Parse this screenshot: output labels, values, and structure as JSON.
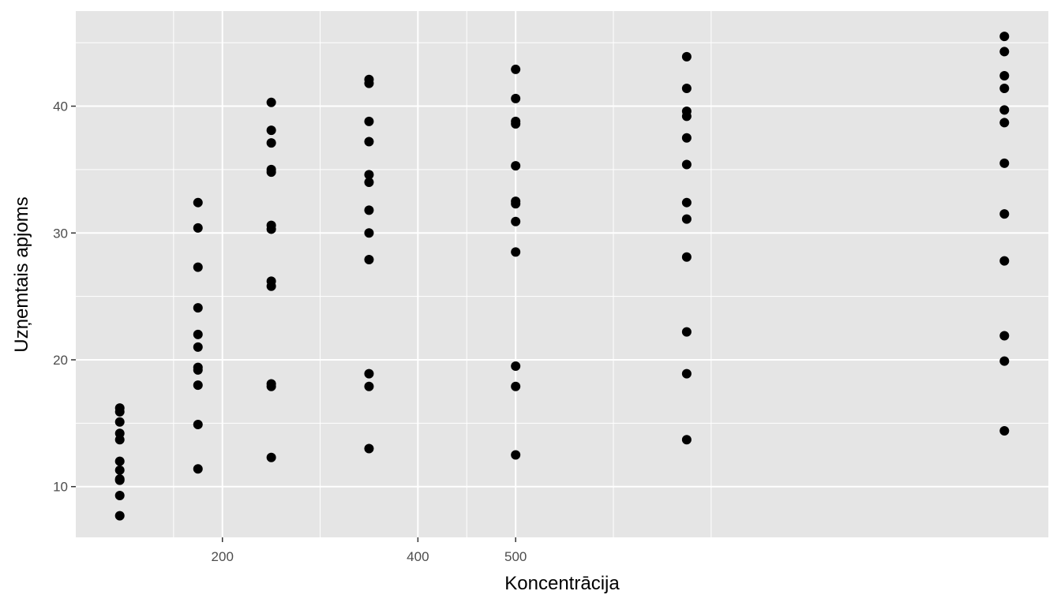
{
  "chart_data": {
    "type": "scatter",
    "title": "",
    "xlabel": "Koncentrācija",
    "ylabel": "Uzņemtais apjoms",
    "x_ticks": [
      200,
      400,
      500
    ],
    "x_tick_labels": [
      "200",
      "400",
      "500"
    ],
    "x_minor_ticks": [
      150,
      300,
      450,
      600,
      700
    ],
    "y_ticks": [
      10,
      20,
      30,
      40
    ],
    "y_tick_labels": [
      "10",
      "20",
      "30",
      "40"
    ],
    "xlim": [
      50,
      1045
    ],
    "ylim": [
      6,
      47.5
    ],
    "grid": true,
    "colors": {
      "panel": "#e5e5e5",
      "grid": "#ffffff",
      "point": "#000000"
    },
    "points": [
      {
        "x": 95,
        "y": 16.2
      },
      {
        "x": 95,
        "y": 15.9
      },
      {
        "x": 95,
        "y": 15.1
      },
      {
        "x": 95,
        "y": 14.2
      },
      {
        "x": 95,
        "y": 13.7
      },
      {
        "x": 95,
        "y": 12.0
      },
      {
        "x": 95,
        "y": 11.3
      },
      {
        "x": 95,
        "y": 10.6
      },
      {
        "x": 95,
        "y": 10.5
      },
      {
        "x": 95,
        "y": 9.3
      },
      {
        "x": 95,
        "y": 7.7
      },
      {
        "x": 175,
        "y": 32.4
      },
      {
        "x": 175,
        "y": 30.4
      },
      {
        "x": 175,
        "y": 27.3
      },
      {
        "x": 175,
        "y": 24.1
      },
      {
        "x": 175,
        "y": 22.0
      },
      {
        "x": 175,
        "y": 21.0
      },
      {
        "x": 175,
        "y": 19.4
      },
      {
        "x": 175,
        "y": 19.2
      },
      {
        "x": 175,
        "y": 18.0
      },
      {
        "x": 175,
        "y": 14.9
      },
      {
        "x": 175,
        "y": 11.4
      },
      {
        "x": 250,
        "y": 40.3
      },
      {
        "x": 250,
        "y": 38.1
      },
      {
        "x": 250,
        "y": 37.1
      },
      {
        "x": 250,
        "y": 35.0
      },
      {
        "x": 250,
        "y": 34.8
      },
      {
        "x": 250,
        "y": 30.6
      },
      {
        "x": 250,
        "y": 30.3
      },
      {
        "x": 250,
        "y": 26.2
      },
      {
        "x": 250,
        "y": 25.8
      },
      {
        "x": 250,
        "y": 18.1
      },
      {
        "x": 250,
        "y": 17.9
      },
      {
        "x": 250,
        "y": 12.3
      },
      {
        "x": 350,
        "y": 42.1
      },
      {
        "x": 350,
        "y": 41.8
      },
      {
        "x": 350,
        "y": 38.8
      },
      {
        "x": 350,
        "y": 37.2
      },
      {
        "x": 350,
        "y": 34.6
      },
      {
        "x": 350,
        "y": 34.0
      },
      {
        "x": 350,
        "y": 31.8
      },
      {
        "x": 350,
        "y": 30.0
      },
      {
        "x": 350,
        "y": 27.9
      },
      {
        "x": 350,
        "y": 18.9
      },
      {
        "x": 350,
        "y": 17.9
      },
      {
        "x": 350,
        "y": 13.0
      },
      {
        "x": 500,
        "y": 42.9
      },
      {
        "x": 500,
        "y": 40.6
      },
      {
        "x": 500,
        "y": 38.8
      },
      {
        "x": 500,
        "y": 38.6
      },
      {
        "x": 500,
        "y": 35.3
      },
      {
        "x": 500,
        "y": 32.5
      },
      {
        "x": 500,
        "y": 32.3
      },
      {
        "x": 500,
        "y": 30.9
      },
      {
        "x": 500,
        "y": 28.5
      },
      {
        "x": 500,
        "y": 19.5
      },
      {
        "x": 500,
        "y": 17.9
      },
      {
        "x": 500,
        "y": 12.5
      },
      {
        "x": 675,
        "y": 43.9
      },
      {
        "x": 675,
        "y": 41.4
      },
      {
        "x": 675,
        "y": 39.6
      },
      {
        "x": 675,
        "y": 39.2
      },
      {
        "x": 675,
        "y": 37.5
      },
      {
        "x": 675,
        "y": 35.4
      },
      {
        "x": 675,
        "y": 32.4
      },
      {
        "x": 675,
        "y": 31.1
      },
      {
        "x": 675,
        "y": 28.1
      },
      {
        "x": 675,
        "y": 22.2
      },
      {
        "x": 675,
        "y": 18.9
      },
      {
        "x": 675,
        "y": 13.7
      },
      {
        "x": 1000,
        "y": 45.5
      },
      {
        "x": 1000,
        "y": 44.3
      },
      {
        "x": 1000,
        "y": 42.4
      },
      {
        "x": 1000,
        "y": 41.4
      },
      {
        "x": 1000,
        "y": 39.7
      },
      {
        "x": 1000,
        "y": 38.7
      },
      {
        "x": 1000,
        "y": 35.5
      },
      {
        "x": 1000,
        "y": 31.5
      },
      {
        "x": 1000,
        "y": 27.8
      },
      {
        "x": 1000,
        "y": 21.9
      },
      {
        "x": 1000,
        "y": 19.9
      },
      {
        "x": 1000,
        "y": 14.4
      }
    ]
  }
}
